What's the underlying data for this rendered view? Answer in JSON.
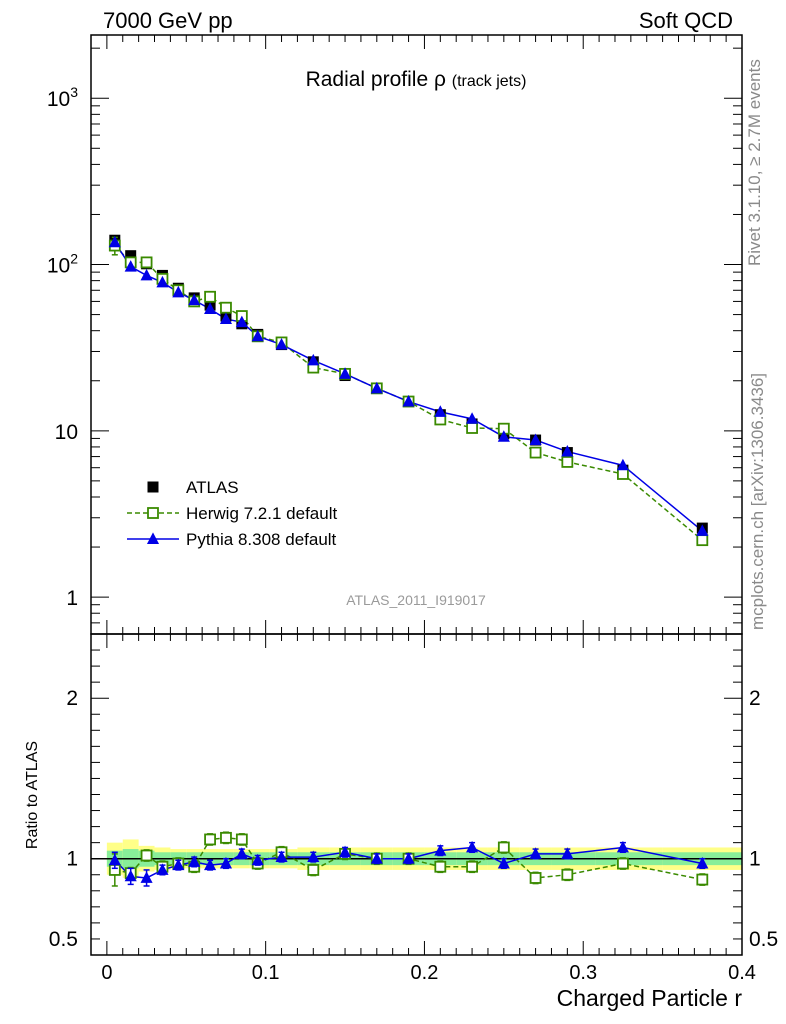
{
  "header": {
    "left": "7000 GeV pp",
    "right": "Soft QCD"
  },
  "side_notes": {
    "rivet": "Rivet 3.1.10, ≥ 2.7M events",
    "mcplots": "mcplots.cern.ch [arXiv:1306.3436]"
  },
  "watermark": "ATLAS_2011_I919017",
  "colors": {
    "atlas": "#000000",
    "herwig": "#3a8a00",
    "pythia": "#0000e6",
    "band_inner": "#88ee99",
    "band_outer": "#ffff88"
  },
  "chart_data": [
    {
      "type": "scatter",
      "title_main": "Radial profile ρ",
      "title_sub": "(track jets)",
      "xlabel": "Charged Particle r",
      "ylabel": "",
      "yscale": "log",
      "xlim": [
        -0.01,
        0.4
      ],
      "ylim": [
        0.6,
        2400
      ],
      "y_ticks": [
        {
          "value": 1000,
          "base": "10",
          "exp": "3"
        },
        {
          "value": 100,
          "base": "10",
          "exp": "2"
        },
        {
          "value": 10,
          "base": "10",
          "exp": ""
        },
        {
          "value": 1,
          "base": "1",
          "exp": ""
        }
      ],
      "legend": {
        "placement": "lower-left",
        "entries": [
          "ATLAS",
          "Herwig 7.2.1 default",
          "Pythia 8.308 default"
        ]
      },
      "x": [
        0.005,
        0.015,
        0.025,
        0.035,
        0.045,
        0.055,
        0.065,
        0.075,
        0.085,
        0.095,
        0.11,
        0.13,
        0.15,
        0.17,
        0.19,
        0.21,
        0.23,
        0.25,
        0.27,
        0.29,
        0.325,
        0.375
      ],
      "series": [
        {
          "name": "ATLAS",
          "values": [
            140,
            113,
            101,
            86,
            72,
            63,
            57,
            49,
            44,
            38,
            33,
            26,
            21.5,
            18,
            15,
            12.5,
            11,
            9.6,
            8.8,
            7.4,
            5.8,
            2.6
          ]
        },
        {
          "name": "Herwig 7.2.1 default",
          "values": [
            130,
            103,
            103,
            82,
            70,
            60,
            64,
            55,
            49,
            37,
            34,
            24,
            22,
            18,
            15,
            11.7,
            10.4,
            10.3,
            7.4,
            6.5,
            5.5,
            2.2
          ]
        },
        {
          "name": "Pythia 8.308 default",
          "values": [
            136,
            97,
            86,
            78,
            68,
            61,
            54,
            47,
            45,
            37,
            33,
            26.5,
            22,
            18,
            15,
            13,
            11.8,
            9.2,
            8.8,
            7.5,
            6.2,
            2.5
          ]
        }
      ]
    },
    {
      "type": "scatter",
      "xlabel": "Charged Particle r",
      "ylabel": "Ratio to ATLAS",
      "ylim": [
        0.4,
        2.4
      ],
      "x_ticks": [
        "0",
        "0.1",
        "0.2",
        "0.3",
        "0.4"
      ],
      "y_ticks": [
        "2",
        "1",
        "0.5"
      ],
      "x": [
        0.005,
        0.015,
        0.025,
        0.035,
        0.045,
        0.055,
        0.065,
        0.075,
        0.085,
        0.095,
        0.11,
        0.13,
        0.15,
        0.17,
        0.19,
        0.21,
        0.23,
        0.25,
        0.27,
        0.29,
        0.325,
        0.375
      ],
      "series": [
        {
          "name": "Herwig 7.2.1 default",
          "values": [
            0.93,
            0.91,
            1.02,
            0.95,
            0.97,
            0.95,
            1.12,
            1.13,
            1.12,
            0.97,
            1.04,
            0.93,
            1.03,
            1.0,
            1.0,
            0.95,
            0.95,
            1.07,
            0.88,
            0.9,
            0.97,
            0.87
          ]
        },
        {
          "name": "Pythia 8.308 default",
          "values": [
            0.99,
            0.89,
            0.88,
            0.93,
            0.96,
            0.98,
            0.96,
            0.97,
            1.03,
            0.99,
            1.01,
            1.01,
            1.04,
            1.0,
            1.0,
            1.05,
            1.07,
            0.97,
            1.03,
            1.03,
            1.07,
            0.97
          ]
        }
      ],
      "band_inner_halfwidth": [
        0.05,
        0.06,
        0.05,
        0.04,
        0.04,
        0.04,
        0.04,
        0.04,
        0.04,
        0.04,
        0.04,
        0.04,
        0.04,
        0.04,
        0.04,
        0.04,
        0.04,
        0.04,
        0.04,
        0.04,
        0.04,
        0.04
      ],
      "band_outer_halfwidth": [
        0.1,
        0.12,
        0.08,
        0.07,
        0.06,
        0.06,
        0.06,
        0.06,
        0.06,
        0.06,
        0.06,
        0.07,
        0.07,
        0.07,
        0.07,
        0.07,
        0.07,
        0.07,
        0.07,
        0.07,
        0.07,
        0.07
      ]
    }
  ]
}
